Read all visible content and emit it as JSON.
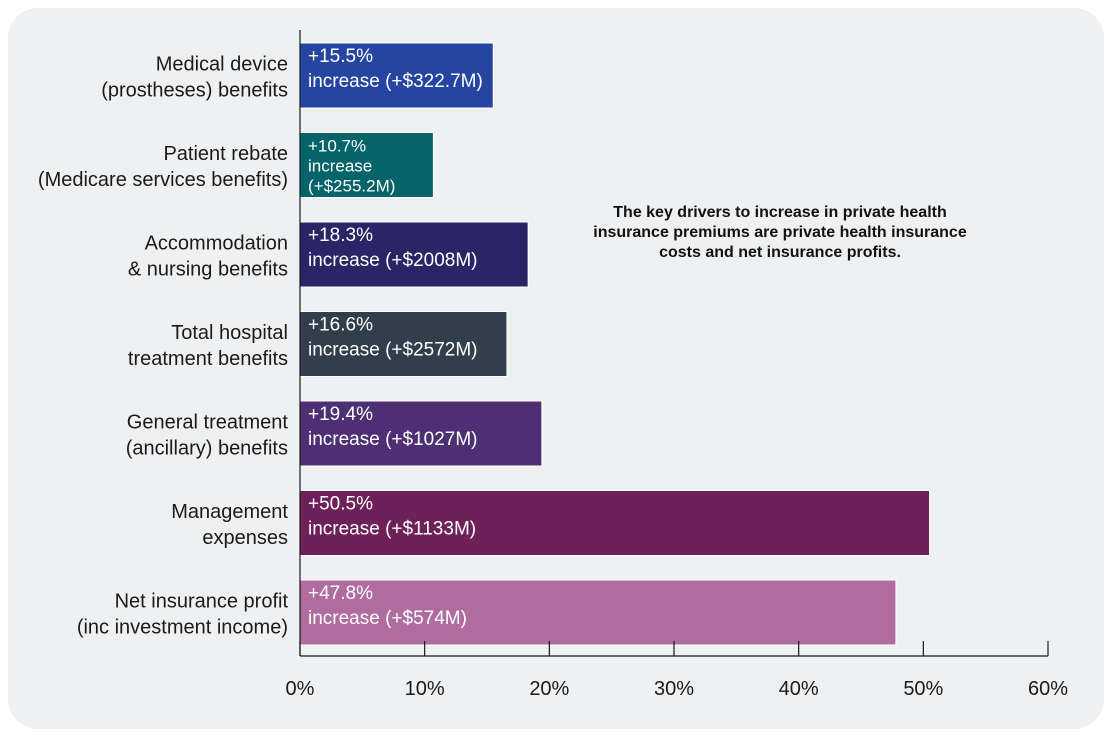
{
  "chart_data": {
    "type": "bar",
    "orientation": "horizontal",
    "categories": [
      [
        "Medical device",
        "(prostheses) benefits"
      ],
      [
        "Patient rebate",
        "(Medicare services benefits)"
      ],
      [
        "Accommodation",
        "& nursing benefits"
      ],
      [
        "Total hospital",
        "treatment benefits"
      ],
      [
        "General treatment",
        "(ancillary) benefits"
      ],
      [
        "Management",
        "expenses"
      ],
      [
        "Net insurance profit",
        "(inc investment income)"
      ]
    ],
    "values": [
      15.5,
      10.7,
      18.3,
      16.6,
      19.4,
      50.5,
      47.8
    ],
    "bar_labels": [
      [
        "+15.5%",
        "increase (+$322.7M)"
      ],
      [
        "+10.7%",
        "increase",
        "(+$255.2M)"
      ],
      [
        "+18.3%",
        "increase (+$2008M)"
      ],
      [
        "+16.6%",
        "increase (+$2572M)"
      ],
      [
        "+19.4%",
        "increase (+$1027M)"
      ],
      [
        "+50.5%",
        "increase (+$1133M)"
      ],
      [
        "+47.8%",
        "increase (+$574M)"
      ]
    ],
    "colors": [
      "#2545a0",
      "#05646a",
      "#2a2566",
      "#323e4b",
      "#4e2f73",
      "#6e2159",
      "#b06c9e"
    ],
    "xlim": [
      0,
      60
    ],
    "xticks": [
      "0%",
      "10%",
      "20%",
      "30%",
      "40%",
      "50%",
      "60%"
    ],
    "annotation": "The key drivers to increase in private health insurance premiums are private health insurance costs and net insurance profits.",
    "grid": false,
    "legend": "none"
  }
}
